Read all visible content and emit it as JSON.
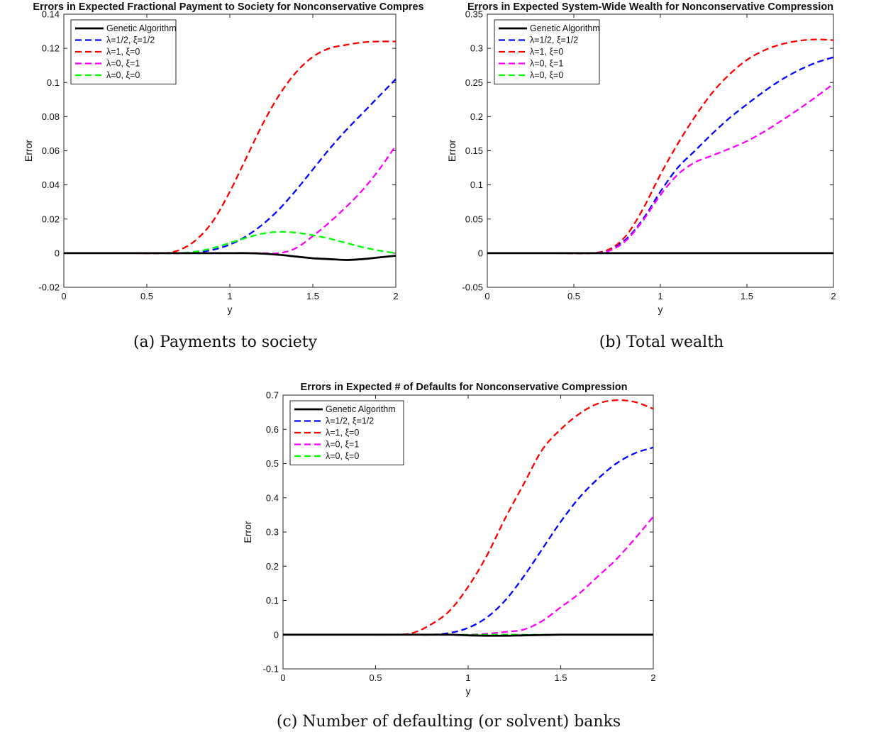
{
  "legend_labels": [
    "Genetic Algorithm",
    "λ=1/2, ξ=1/2",
    "λ=1, ξ=0",
    "λ=0, ξ=1",
    "λ=0, ξ=0"
  ],
  "captions": {
    "a": "(a) Payments to society",
    "b": "(b) Total wealth",
    "c": "(c) Number of defaulting (or solvent) banks"
  },
  "colors": {
    "genetic": "#000000",
    "half_half": "#0000ff",
    "one_zero": "#ff0000",
    "zero_one": "#ff00ff",
    "zero_zero": "#00ff00"
  },
  "chart_data": [
    {
      "type": "line",
      "title": "Errors in Expected Fractional Payment to Society for Nonconservative Compres",
      "xlabel": "y",
      "ylabel": "Error",
      "xlim": [
        0,
        2
      ],
      "ylim": [
        -0.02,
        0.14
      ],
      "xticks": [
        "0",
        "0.5",
        "1",
        "1.5",
        "2"
      ],
      "yticks": [
        "-0.02",
        "0",
        "0.02",
        "0.04",
        "0.06",
        "0.08",
        "0.1",
        "0.12",
        "0.14"
      ],
      "legend_position": "top-left",
      "grid": false,
      "x": [
        0,
        0.2,
        0.4,
        0.6,
        0.7,
        0.8,
        0.9,
        1.0,
        1.1,
        1.2,
        1.3,
        1.4,
        1.5,
        1.6,
        1.7,
        1.8,
        1.9,
        2.0
      ],
      "series": [
        {
          "name": "Genetic Algorithm",
          "values": [
            0,
            0,
            0,
            0,
            0,
            0,
            0,
            0,
            0,
            -0.0003,
            -0.001,
            -0.002,
            -0.003,
            -0.0035,
            -0.004,
            -0.0035,
            -0.0025,
            -0.0015
          ]
        },
        {
          "name": "λ=1/2, ξ=1/2",
          "values": [
            0,
            0,
            0,
            0,
            0,
            0.0005,
            0.002,
            0.005,
            0.01,
            0.017,
            0.026,
            0.037,
            0.049,
            0.061,
            0.072,
            0.082,
            0.092,
            0.102
          ]
        },
        {
          "name": "λ=1, ξ=0",
          "values": [
            0,
            0,
            0,
            0,
            0.002,
            0.008,
            0.019,
            0.036,
            0.056,
            0.076,
            0.093,
            0.106,
            0.115,
            0.12,
            0.122,
            0.1235,
            0.124,
            0.124
          ]
        },
        {
          "name": "λ=0, ξ=1",
          "values": [
            0,
            0,
            0,
            0,
            0,
            0,
            0,
            0,
            0,
            0,
            0,
            0.003,
            0.01,
            0.018,
            0.027,
            0.037,
            0.049,
            0.063
          ]
        },
        {
          "name": "λ=0, ξ=0",
          "values": [
            0,
            0,
            0,
            0,
            0,
            0.001,
            0.003,
            0.006,
            0.009,
            0.0115,
            0.0125,
            0.012,
            0.0105,
            0.0085,
            0.006,
            0.0035,
            0.0015,
            0
          ]
        }
      ]
    },
    {
      "type": "line",
      "title": "Errors in Expected System-Wide Wealth for Nonconservative Compression",
      "xlabel": "y",
      "ylabel": "Error",
      "xlim": [
        0,
        2
      ],
      "ylim": [
        -0.05,
        0.35
      ],
      "xticks": [
        "0",
        "0.5",
        "1",
        "1.5",
        "2"
      ],
      "yticks": [
        "-0.05",
        "0",
        "0.05",
        "0.1",
        "0.15",
        "0.2",
        "0.25",
        "0.3",
        "0.35"
      ],
      "legend_position": "top-left",
      "grid": false,
      "x": [
        0,
        0.2,
        0.4,
        0.6,
        0.7,
        0.8,
        0.9,
        1.0,
        1.1,
        1.2,
        1.3,
        1.4,
        1.5,
        1.6,
        1.7,
        1.8,
        1.9,
        2.0
      ],
      "series": [
        {
          "name": "Genetic Algorithm",
          "values": [
            0,
            0,
            0,
            0,
            0,
            0,
            0,
            0,
            0,
            0,
            0,
            0,
            0,
            0,
            0,
            0,
            0,
            0
          ]
        },
        {
          "name": "λ=1/2, ξ=1/2",
          "values": [
            0,
            0,
            0,
            0,
            0.005,
            0.02,
            0.05,
            0.09,
            0.125,
            0.15,
            0.175,
            0.198,
            0.218,
            0.237,
            0.254,
            0.268,
            0.279,
            0.287
          ]
        },
        {
          "name": "λ=1, ξ=0",
          "values": [
            0,
            0,
            0,
            0,
            0.005,
            0.025,
            0.065,
            0.115,
            0.16,
            0.2,
            0.235,
            0.262,
            0.283,
            0.297,
            0.306,
            0.311,
            0.313,
            0.312
          ]
        },
        {
          "name": "λ=0, ξ=1",
          "values": [
            0,
            0,
            0,
            0,
            0.003,
            0.018,
            0.048,
            0.085,
            0.115,
            0.133,
            0.143,
            0.153,
            0.164,
            0.178,
            0.194,
            0.211,
            0.229,
            0.248
          ]
        },
        {
          "name": "λ=0, ξ=0",
          "values": [
            0,
            0,
            0,
            0,
            0,
            0,
            0,
            0,
            0,
            0,
            0,
            0,
            0,
            0,
            0,
            0,
            0,
            0
          ]
        }
      ]
    },
    {
      "type": "line",
      "title": "Errors in Expected # of Defaults for Nonconservative Compression",
      "xlabel": "y",
      "ylabel": "Error",
      "xlim": [
        0,
        2
      ],
      "ylim": [
        -0.1,
        0.7
      ],
      "xticks": [
        "0",
        "0.5",
        "1",
        "1.5",
        "2"
      ],
      "yticks": [
        "-0.1",
        "0",
        "0.1",
        "0.2",
        "0.3",
        "0.4",
        "0.5",
        "0.6",
        "0.7"
      ],
      "legend_position": "top-left",
      "grid": false,
      "x": [
        0,
        0.2,
        0.4,
        0.6,
        0.7,
        0.8,
        0.9,
        1.0,
        1.1,
        1.2,
        1.3,
        1.4,
        1.5,
        1.6,
        1.7,
        1.8,
        1.9,
        2.0
      ],
      "series": [
        {
          "name": "Genetic Algorithm",
          "values": [
            0,
            0,
            0,
            0,
            0,
            0,
            0,
            -0.002,
            -0.003,
            -0.003,
            -0.002,
            -0.001,
            0,
            0,
            0,
            0,
            0,
            0
          ]
        },
        {
          "name": "λ=1/2, ξ=1/2",
          "values": [
            0,
            0,
            0,
            0,
            0,
            0,
            0.005,
            0.02,
            0.05,
            0.1,
            0.17,
            0.25,
            0.33,
            0.4,
            0.455,
            0.5,
            0.53,
            0.547
          ]
        },
        {
          "name": "λ=1, ξ=0",
          "values": [
            0,
            0,
            0,
            0,
            0.005,
            0.03,
            0.07,
            0.14,
            0.23,
            0.34,
            0.44,
            0.54,
            0.6,
            0.645,
            0.675,
            0.685,
            0.68,
            0.66
          ]
        },
        {
          "name": "λ=0, ξ=1",
          "values": [
            0,
            0,
            0,
            0,
            0,
            0,
            0,
            0,
            0.003,
            0.008,
            0.015,
            0.04,
            0.08,
            0.12,
            0.17,
            0.22,
            0.28,
            0.345
          ]
        },
        {
          "name": "λ=0, ξ=0",
          "values": [
            0,
            0,
            0,
            0,
            0,
            0,
            0,
            0,
            0,
            0,
            0,
            0,
            0,
            0,
            0,
            0,
            0,
            0
          ]
        }
      ]
    }
  ]
}
